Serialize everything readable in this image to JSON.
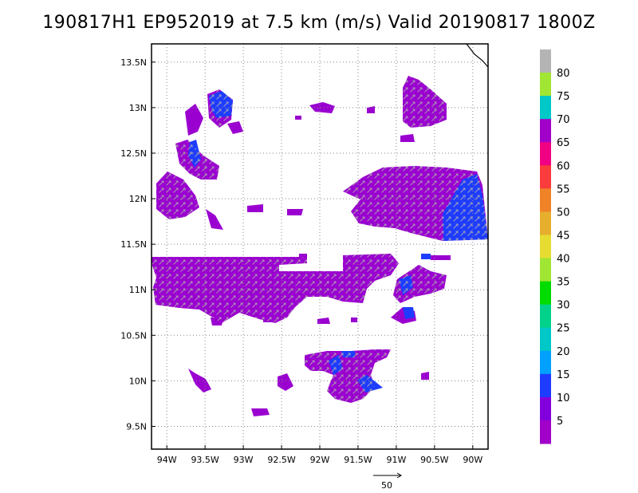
{
  "title": "190817H1 EP952019 at 7.5 km (m/s) Valid 20190817 1800Z",
  "map": {
    "lon_range": [
      -94.2,
      -89.8
    ],
    "lat_range": [
      9.25,
      13.7
    ],
    "x_ticks": [
      {
        "value": -94.0,
        "label": "94W"
      },
      {
        "value": -93.5,
        "label": "93.5W"
      },
      {
        "value": -93.0,
        "label": "93W"
      },
      {
        "value": -92.5,
        "label": "92.5W"
      },
      {
        "value": -92.0,
        "label": "92W"
      },
      {
        "value": -91.5,
        "label": "91.5W"
      },
      {
        "value": -91.0,
        "label": "91W"
      },
      {
        "value": -90.5,
        "label": "90.5W"
      },
      {
        "value": -90.0,
        "label": "90W"
      }
    ],
    "y_ticks": [
      {
        "value": 9.5,
        "label": "9.5N"
      },
      {
        "value": 10.0,
        "label": "10N"
      },
      {
        "value": 10.5,
        "label": "10.5N"
      },
      {
        "value": 11.0,
        "label": "11N"
      },
      {
        "value": 11.5,
        "label": "11.5N"
      },
      {
        "value": 12.0,
        "label": "12N"
      },
      {
        "value": 12.5,
        "label": "12.5N"
      },
      {
        "value": 13.0,
        "label": "13N"
      },
      {
        "value": 13.5,
        "label": "13.5N"
      }
    ],
    "grid": true,
    "grid_style": "dotted"
  },
  "reference_vector": {
    "label": "50"
  },
  "colorbar": {
    "colors": [
      "#a000c8",
      "#8200dc",
      "#1e3cff",
      "#00a0ff",
      "#00c8c8",
      "#00d28c",
      "#00dc00",
      "#a0e632",
      "#e6dc32",
      "#e6af2d",
      "#f08228",
      "#fa3c3c",
      "#f00082",
      "#a000c8",
      "#00c8c8",
      "#a0e632",
      "#b4b4b4"
    ],
    "labels": [
      "5",
      "10",
      "15",
      "20",
      "25",
      "30",
      "35",
      "40",
      "45",
      "50",
      "55",
      "60",
      "65",
      "70",
      "75",
      "80"
    ]
  }
}
